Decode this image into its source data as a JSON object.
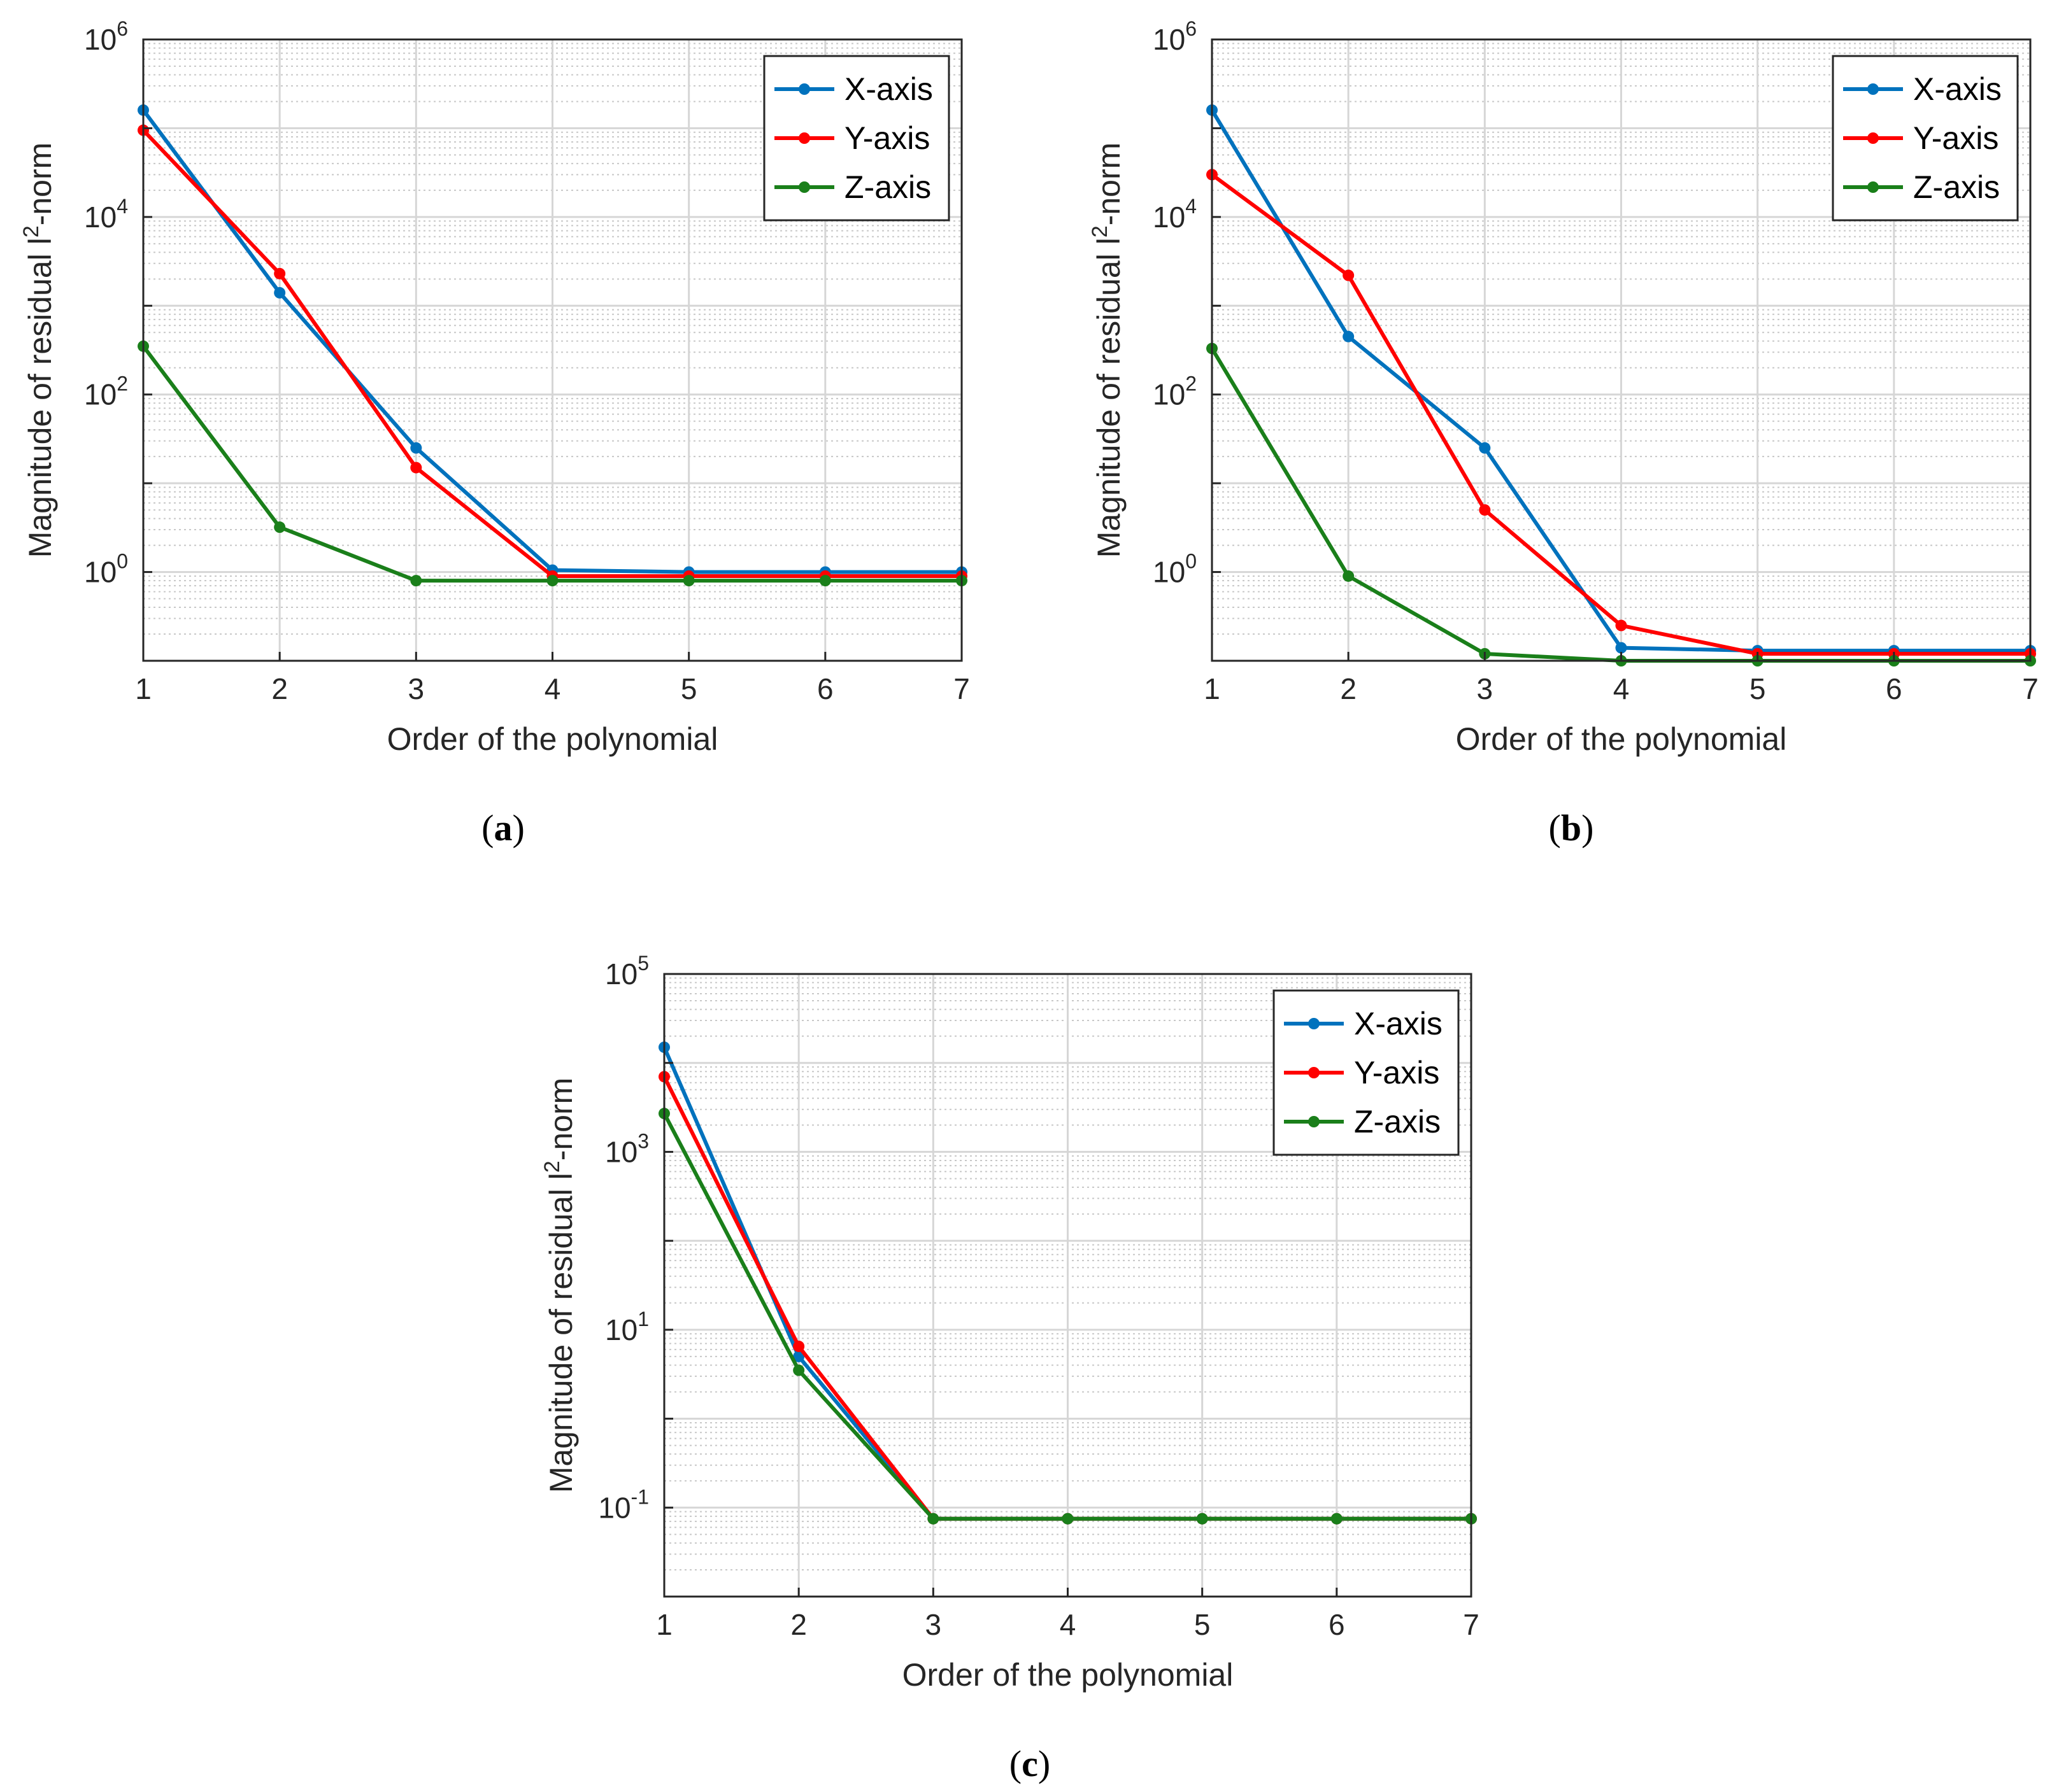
{
  "chart_data": [
    {
      "type": "line",
      "panel": "a",
      "caption_letter": "a",
      "x": [
        1,
        2,
        3,
        4,
        5,
        6,
        7
      ],
      "xlabel": "Order of the polynomial",
      "ylabel_main": "Magnitude of residual l",
      "ylabel_sup": "2",
      "ylabel_tail": "-norm",
      "yscale": "log",
      "ylim": [
        0.1,
        1000000
      ],
      "xlim": [
        1,
        7
      ],
      "grid": true,
      "legend_position": "top-right",
      "series": [
        {
          "name": "X-axis",
          "color": "#0072BD",
          "values": [
            160000,
            1400,
            25,
            1.05,
            1.0,
            1.0,
            1.0
          ]
        },
        {
          "name": "Y-axis",
          "color": "#FF0000",
          "values": [
            95000,
            2300,
            15,
            0.9,
            0.9,
            0.9,
            0.9
          ]
        },
        {
          "name": "Z-axis",
          "color": "#1A7F1A",
          "values": [
            350,
            3.2,
            0.8,
            0.8,
            0.8,
            0.8,
            0.8
          ]
        }
      ]
    },
    {
      "type": "line",
      "panel": "b",
      "caption_letter": "b",
      "x": [
        1,
        2,
        3,
        4,
        5,
        6,
        7
      ],
      "xlabel": "Order of the polynomial",
      "ylabel_main": "Magnitude of residual l",
      "ylabel_sup": "2",
      "ylabel_tail": "-norm",
      "yscale": "log",
      "ylim": [
        0.1,
        1000000
      ],
      "xlim": [
        1,
        7
      ],
      "grid": true,
      "legend_position": "top-right",
      "series": [
        {
          "name": "X-axis",
          "color": "#0072BD",
          "values": [
            160000,
            450,
            25,
            0.14,
            0.13,
            0.13,
            0.13
          ]
        },
        {
          "name": "Y-axis",
          "color": "#FF0000",
          "values": [
            30000,
            2200,
            5,
            0.25,
            0.12,
            0.12,
            0.12
          ]
        },
        {
          "name": "Z-axis",
          "color": "#1A7F1A",
          "values": [
            330,
            0.9,
            0.12,
            0.1,
            0.1,
            0.1,
            0.1
          ]
        }
      ]
    },
    {
      "type": "line",
      "panel": "c",
      "caption_letter": "c",
      "x": [
        1,
        2,
        3,
        4,
        5,
        6,
        7
      ],
      "xlabel": "Order of the polynomial",
      "ylabel_main": "Magnitude of residual l",
      "ylabel_sup": "2",
      "ylabel_tail": "-norm",
      "yscale": "log",
      "ylim": [
        0.01,
        100000
      ],
      "xlim": [
        1,
        7
      ],
      "grid": true,
      "legend_position": "top-right",
      "series": [
        {
          "name": "X-axis",
          "color": "#0072BD",
          "values": [
            15000,
            5,
            0.075,
            0.075,
            0.075,
            0.075,
            0.075
          ]
        },
        {
          "name": "Y-axis",
          "color": "#FF0000",
          "values": [
            7000,
            6.5,
            0.075,
            0.075,
            0.075,
            0.075,
            0.075
          ]
        },
        {
          "name": "Z-axis",
          "color": "#1A7F1A",
          "values": [
            2700,
            3.5,
            0.075,
            0.075,
            0.075,
            0.075,
            0.075
          ]
        }
      ]
    }
  ]
}
